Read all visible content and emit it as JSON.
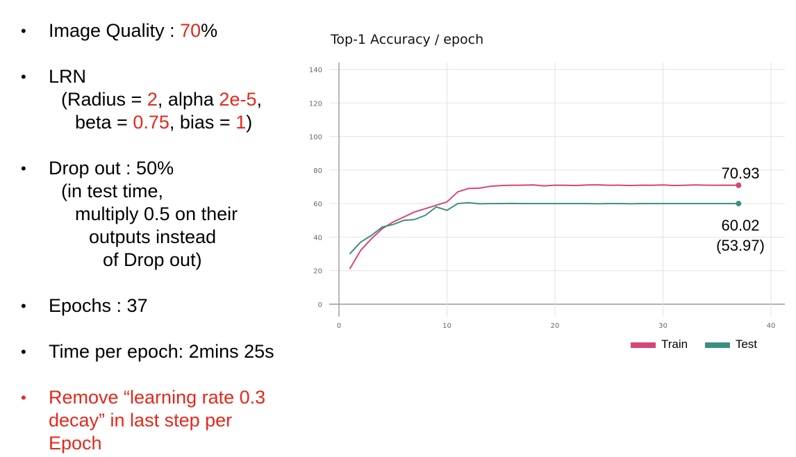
{
  "bullets": [
    {
      "dot": "•",
      "parts": [
        {
          "text": "Image Quality : ",
          "red": false
        },
        {
          "text": "70",
          "red": true
        },
        {
          "text": "%",
          "red": false
        }
      ]
    },
    {
      "dot": "•",
      "lines": [
        [
          {
            "text": "LRN",
            "red": false
          }
        ],
        [
          {
            "text": "  (Radius = ",
            "red": false
          },
          {
            "text": "2",
            "red": true
          },
          {
            "text": ", alpha ",
            "red": false
          },
          {
            "text": "2e-5",
            "red": true
          },
          {
            "text": ",",
            "red": false
          }
        ],
        [
          {
            "text": "    beta = ",
            "red": false
          },
          {
            "text": "0.75",
            "red": true
          },
          {
            "text": ", bias = ",
            "red": false
          },
          {
            "text": "1",
            "red": true
          },
          {
            "text": ")",
            "red": false
          }
        ]
      ]
    },
    {
      "dot": "•",
      "lines": [
        [
          {
            "text": "Drop out : 50%",
            "red": false
          }
        ],
        [
          {
            "text": "(in test time,",
            "red": false
          }
        ],
        [
          {
            "text": "multiply 0.5 on their",
            "red": false
          }
        ],
        [
          {
            "text": "outputs instead",
            "red": false
          }
        ],
        [
          {
            "text": "of Drop out)",
            "red": false
          }
        ]
      ]
    },
    {
      "dot": "•",
      "parts": [
        {
          "text": "Epochs : 37",
          "red": false
        }
      ]
    },
    {
      "dot": "•",
      "parts": [
        {
          "text": "Time per epoch: 2mins 25s",
          "red": false
        }
      ]
    },
    {
      "dot": "•",
      "red_bullet": true,
      "lines": [
        [
          {
            "text": "Remove “learning rate 0.3",
            "red": true
          }
        ],
        [
          {
            "text": "decay” in last step per",
            "red": true
          }
        ],
        [
          {
            "text": "Epoch",
            "red": true
          }
        ]
      ]
    }
  ],
  "chart_data": {
    "type": "line",
    "title": "Top-1 Accuracy / epoch",
    "xlabel": "",
    "ylabel": "",
    "xlim": [
      0,
      40
    ],
    "ylim": [
      0,
      140
    ],
    "xticks": [
      0,
      10,
      20,
      30,
      40
    ],
    "yticks": [
      0,
      20,
      40,
      60,
      80,
      100,
      120,
      140
    ],
    "grid": true,
    "legend_position": "bottom-right",
    "series": [
      {
        "name": "Train",
        "color": "#d6457a",
        "x": [
          1,
          2,
          3,
          4,
          5,
          6,
          7,
          8,
          9,
          10,
          11,
          12,
          13,
          14,
          15,
          16,
          17,
          18,
          19,
          20,
          21,
          22,
          23,
          24,
          25,
          26,
          27,
          28,
          29,
          30,
          31,
          32,
          33,
          34,
          35,
          36,
          37
        ],
        "y": [
          21,
          32,
          39,
          45,
          49,
          52,
          55,
          57,
          59,
          61,
          67,
          69,
          69.2,
          70.3,
          70.8,
          70.9,
          71,
          71.1,
          70.6,
          71,
          70.9,
          70.8,
          71.1,
          71.2,
          70.9,
          71,
          70.8,
          71,
          70.9,
          71.1,
          70.8,
          70.9,
          71.1,
          71,
          70.9,
          71,
          70.93
        ]
      },
      {
        "name": "Test",
        "color": "#3c8f7e",
        "x": [
          1,
          2,
          3,
          4,
          5,
          6,
          7,
          8,
          9,
          10,
          11,
          12,
          13,
          14,
          15,
          16,
          17,
          18,
          19,
          20,
          21,
          22,
          23,
          24,
          25,
          26,
          27,
          28,
          29,
          30,
          31,
          32,
          33,
          34,
          35,
          36,
          37
        ],
        "y": [
          30,
          37,
          41,
          46,
          47.5,
          50,
          50.5,
          53,
          58,
          56,
          60,
          60.5,
          59.9,
          60,
          60,
          60.1,
          60,
          60,
          60,
          60,
          60,
          60,
          60,
          59.9,
          60,
          60,
          59.9,
          60,
          60,
          60,
          60,
          60,
          60,
          60,
          60,
          60,
          60.02
        ]
      }
    ],
    "annotations": [
      {
        "text": "70.93",
        "series": "Train"
      },
      {
        "text": "60.02",
        "series": "Test"
      },
      {
        "text": "(53.97)",
        "series": "Test"
      }
    ]
  }
}
